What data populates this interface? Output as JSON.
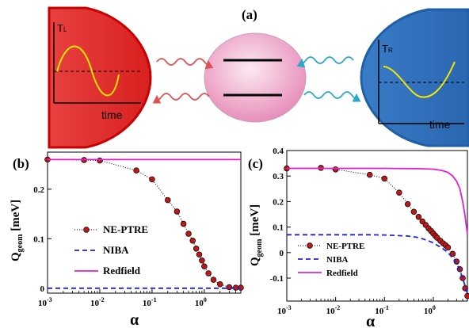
{
  "colors": {
    "hot_bath": "#e02424",
    "cold_bath": "#2f74c0",
    "hot_wave": "#e05050",
    "cold_wave": "#2aa7c9",
    "system": "#f2b9d2",
    "temperature_signal": "#f2e600",
    "ne_ptre_fill": "#c01818",
    "niba_line": "#1e22e6",
    "redfield_line": "#e020d0"
  },
  "schematic": {
    "label": "(a)",
    "left_bath_temp": "T",
    "left_bath_temp_sub": "L",
    "right_bath_temp": "T",
    "right_bath_temp_sub": "R",
    "time_left": "time",
    "time_right": "time"
  },
  "panel_b": {
    "label": "(b)",
    "ylabel_main": "Q",
    "ylabel_sub": "geom",
    "ylabel_unit": " [meV]",
    "xlabel": "α",
    "yticks": [
      "0",
      "0.1",
      "0.2"
    ],
    "xticks": [
      {
        "base": "10",
        "exp": "-3"
      },
      {
        "base": "10",
        "exp": "-2"
      },
      {
        "base": "10",
        "exp": "-1"
      },
      {
        "base": "10",
        "exp": "0"
      }
    ],
    "legend": [
      "NE-PTRE",
      "NIBA",
      "Redfield"
    ]
  },
  "panel_c": {
    "label": "(c)",
    "ylabel_main": "Q",
    "ylabel_sub": "geom",
    "ylabel_unit": " [meV]",
    "xlabel": "α",
    "yticks": [
      "-0.1",
      "0",
      "0.1",
      "0.2",
      "0.3",
      "0.4"
    ],
    "xticks": [
      {
        "base": "10",
        "exp": "-3"
      },
      {
        "base": "10",
        "exp": "-2"
      },
      {
        "base": "10",
        "exp": "-1"
      },
      {
        "base": "10",
        "exp": "0"
      }
    ],
    "legend": [
      "NE-PTRE",
      "NIBA",
      "Redfield"
    ]
  },
  "chart_data": [
    {
      "type": "line",
      "panel": "(b)",
      "xscale": "log",
      "xlim": [
        0.001,
        5
      ],
      "ylim": [
        -0.01,
        0.275
      ],
      "xlabel": "α",
      "ylabel": "Q_geom [meV]",
      "legend_position": "lower-left",
      "series": [
        {
          "name": "NE-PTRE",
          "style": "dotted-with-circles",
          "x": [
            0.001,
            0.005,
            0.01,
            0.05,
            0.1,
            0.2,
            0.3,
            0.4,
            0.5,
            0.6,
            0.7,
            0.8,
            0.9,
            1.0,
            1.2,
            1.5,
            2.0,
            3.0,
            4.0,
            5.0
          ],
          "y": [
            0.26,
            0.259,
            0.258,
            0.238,
            0.22,
            0.178,
            0.155,
            0.13,
            0.11,
            0.096,
            0.08,
            0.068,
            0.056,
            0.044,
            0.03,
            0.017,
            0.008,
            0.002,
            0.001,
            0.001
          ]
        },
        {
          "name": "NIBA",
          "style": "dashed",
          "x": [
            0.001,
            5.0
          ],
          "y": [
            0.0,
            0.0
          ]
        },
        {
          "name": "Redfield",
          "style": "solid",
          "x": [
            0.001,
            5.0
          ],
          "y": [
            0.26,
            0.26
          ]
        }
      ]
    },
    {
      "type": "line",
      "panel": "(c)",
      "xscale": "log",
      "xlim": [
        0.001,
        5
      ],
      "ylim": [
        -0.19,
        0.4
      ],
      "xlabel": "α",
      "ylabel": "Q_geom [meV]",
      "legend_position": "lower-left",
      "series": [
        {
          "name": "NE-PTRE",
          "style": "dotted-with-circles",
          "x": [
            0.001,
            0.005,
            0.01,
            0.05,
            0.1,
            0.2,
            0.3,
            0.4,
            0.5,
            0.6,
            0.7,
            0.8,
            0.9,
            1.0,
            1.1,
            1.2,
            1.4,
            1.6,
            1.8,
            2.0,
            2.5,
            3.0,
            3.5,
            4.0,
            4.5,
            5.0
          ],
          "y": [
            0.33,
            0.332,
            0.326,
            0.305,
            0.29,
            0.235,
            0.19,
            0.16,
            0.14,
            0.122,
            0.108,
            0.095,
            0.085,
            0.075,
            0.066,
            0.058,
            0.046,
            0.036,
            0.028,
            0.02,
            -0.005,
            -0.035,
            -0.065,
            -0.1,
            -0.14,
            -0.17
          ]
        },
        {
          "name": "NIBA",
          "style": "dashed",
          "x": [
            0.001,
            0.05,
            0.1,
            0.3,
            0.5,
            0.8,
            1.0,
            1.5,
            2.0,
            3.0,
            4.0,
            5.0
          ],
          "y": [
            0.07,
            0.07,
            0.069,
            0.065,
            0.059,
            0.046,
            0.038,
            0.018,
            0.0,
            -0.04,
            -0.1,
            -0.16
          ]
        },
        {
          "name": "Redfield",
          "style": "solid",
          "x": [
            0.001,
            0.1,
            0.5,
            1.0,
            1.5,
            2.0,
            2.5,
            3.0,
            3.5,
            4.0,
            4.5,
            5.0
          ],
          "y": [
            0.33,
            0.33,
            0.329,
            0.327,
            0.322,
            0.314,
            0.3,
            0.28,
            0.25,
            0.2,
            0.14,
            0.07
          ]
        }
      ]
    }
  ]
}
